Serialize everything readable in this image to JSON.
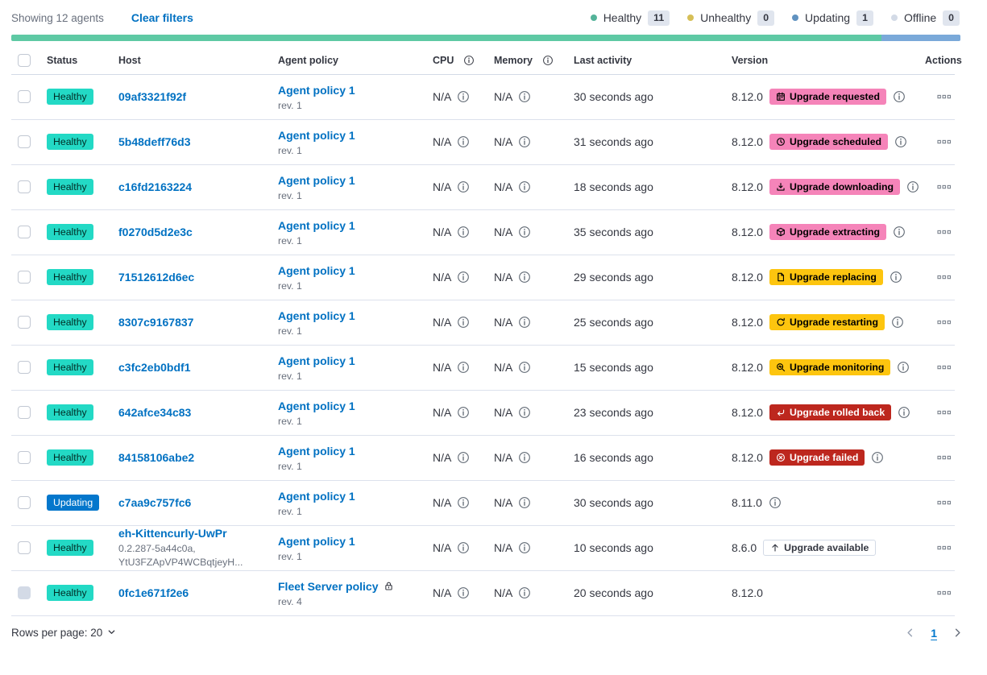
{
  "colors": {
    "link": "#0071c2",
    "text": "#343741",
    "subdued": "#69707d",
    "border": "#d3dae6",
    "healthy-badge": "#23d9c5",
    "updating-badge": "#0477cc",
    "accent-badge": "#f584b9",
    "warning-badge": "#fdc50f",
    "danger-badge": "#bd271e",
    "count-badge-bg": "#e0e5ee"
  },
  "toolbar": {
    "showing_text": "Showing 12 agents",
    "clear_filters_label": "Clear filters",
    "legend": [
      {
        "label": "Healthy",
        "count": "11",
        "color": "#54b399"
      },
      {
        "label": "Unhealthy",
        "count": "0",
        "color": "#d6bf57"
      },
      {
        "label": "Updating",
        "count": "1",
        "color": "#6092c0"
      },
      {
        "label": "Offline",
        "count": "0",
        "color": "#d3dae6"
      }
    ]
  },
  "health_bar": {
    "segments": [
      {
        "label": "Healthy",
        "percent": 91.7,
        "color": "#5ec9a4"
      },
      {
        "label": "Updating",
        "percent": 8.3,
        "color": "#7aa9d9"
      }
    ]
  },
  "table": {
    "headers": {
      "status": "Status",
      "host": "Host",
      "policy": "Agent policy",
      "cpu": "CPU",
      "memory": "Memory",
      "last_activity": "Last activity",
      "version": "Version",
      "actions": "Actions"
    },
    "rows": [
      {
        "checkbox_disabled": false,
        "status": {
          "label": "Healthy",
          "kind": "healthy"
        },
        "host": {
          "name": "09af3321f92f",
          "meta": []
        },
        "policy": {
          "name": "Agent policy 1",
          "revision": "rev. 1",
          "locked": false
        },
        "cpu": "N/A",
        "memory": "N/A",
        "last_activity": "30 seconds ago",
        "version": "8.12.0",
        "upgrade_badge": {
          "label": "Upgrade requested",
          "kind": "accent",
          "icon": "calendar-icon"
        },
        "version_info": true
      },
      {
        "checkbox_disabled": false,
        "status": {
          "label": "Healthy",
          "kind": "healthy"
        },
        "host": {
          "name": "5b48deff76d3",
          "meta": []
        },
        "policy": {
          "name": "Agent policy 1",
          "revision": "rev. 1",
          "locked": false
        },
        "cpu": "N/A",
        "memory": "N/A",
        "last_activity": "31 seconds ago",
        "version": "8.12.0",
        "upgrade_badge": {
          "label": "Upgrade scheduled",
          "kind": "accent",
          "icon": "clock-icon"
        },
        "version_info": true
      },
      {
        "checkbox_disabled": false,
        "status": {
          "label": "Healthy",
          "kind": "healthy"
        },
        "host": {
          "name": "c16fd2163224",
          "meta": []
        },
        "policy": {
          "name": "Agent policy 1",
          "revision": "rev. 1",
          "locked": false
        },
        "cpu": "N/A",
        "memory": "N/A",
        "last_activity": "18 seconds ago",
        "version": "8.12.0",
        "upgrade_badge": {
          "label": "Upgrade downloading",
          "kind": "accent",
          "icon": "download-icon"
        },
        "version_info": true
      },
      {
        "checkbox_disabled": false,
        "status": {
          "label": "Healthy",
          "kind": "healthy"
        },
        "host": {
          "name": "f0270d5d2e3c",
          "meta": []
        },
        "policy": {
          "name": "Agent policy 1",
          "revision": "rev. 1",
          "locked": false
        },
        "cpu": "N/A",
        "memory": "N/A",
        "last_activity": "35 seconds ago",
        "version": "8.12.0",
        "upgrade_badge": {
          "label": "Upgrade extracting",
          "kind": "accent",
          "icon": "package-icon"
        },
        "version_info": true
      },
      {
        "checkbox_disabled": false,
        "status": {
          "label": "Healthy",
          "kind": "healthy"
        },
        "host": {
          "name": "71512612d6ec",
          "meta": []
        },
        "policy": {
          "name": "Agent policy 1",
          "revision": "rev. 1",
          "locked": false
        },
        "cpu": "N/A",
        "memory": "N/A",
        "last_activity": "29 seconds ago",
        "version": "8.12.0",
        "upgrade_badge": {
          "label": "Upgrade replacing",
          "kind": "warning",
          "icon": "document-icon"
        },
        "version_info": true
      },
      {
        "checkbox_disabled": false,
        "status": {
          "label": "Healthy",
          "kind": "healthy"
        },
        "host": {
          "name": "8307c9167837",
          "meta": []
        },
        "policy": {
          "name": "Agent policy 1",
          "revision": "rev. 1",
          "locked": false
        },
        "cpu": "N/A",
        "memory": "N/A",
        "last_activity": "25 seconds ago",
        "version": "8.12.0",
        "upgrade_badge": {
          "label": "Upgrade restarting",
          "kind": "warning",
          "icon": "refresh-icon"
        },
        "version_info": true
      },
      {
        "checkbox_disabled": false,
        "status": {
          "label": "Healthy",
          "kind": "healthy"
        },
        "host": {
          "name": "c3fc2eb0bdf1",
          "meta": []
        },
        "policy": {
          "name": "Agent policy 1",
          "revision": "rev. 1",
          "locked": false
        },
        "cpu": "N/A",
        "memory": "N/A",
        "last_activity": "15 seconds ago",
        "version": "8.12.0",
        "upgrade_badge": {
          "label": "Upgrade monitoring",
          "kind": "warning",
          "icon": "inspect-icon"
        },
        "version_info": true
      },
      {
        "checkbox_disabled": false,
        "status": {
          "label": "Healthy",
          "kind": "healthy"
        },
        "host": {
          "name": "642afce34c83",
          "meta": []
        },
        "policy": {
          "name": "Agent policy 1",
          "revision": "rev. 1",
          "locked": false
        },
        "cpu": "N/A",
        "memory": "N/A",
        "last_activity": "23 seconds ago",
        "version": "8.12.0",
        "upgrade_badge": {
          "label": "Upgrade rolled back",
          "kind": "danger",
          "icon": "return-icon"
        },
        "version_info": true
      },
      {
        "checkbox_disabled": false,
        "status": {
          "label": "Healthy",
          "kind": "healthy"
        },
        "host": {
          "name": "84158106abe2",
          "meta": []
        },
        "policy": {
          "name": "Agent policy 1",
          "revision": "rev. 1",
          "locked": false
        },
        "cpu": "N/A",
        "memory": "N/A",
        "last_activity": "16 seconds ago",
        "version": "8.12.0",
        "upgrade_badge": {
          "label": "Upgrade failed",
          "kind": "danger",
          "icon": "error-icon"
        },
        "version_info": true
      },
      {
        "checkbox_disabled": false,
        "status": {
          "label": "Updating",
          "kind": "updating"
        },
        "host": {
          "name": "c7aa9c757fc6",
          "meta": []
        },
        "policy": {
          "name": "Agent policy 1",
          "revision": "rev. 1",
          "locked": false
        },
        "cpu": "N/A",
        "memory": "N/A",
        "last_activity": "30 seconds ago",
        "version": "8.11.0",
        "upgrade_badge": null,
        "version_info": true
      },
      {
        "checkbox_disabled": false,
        "status": {
          "label": "Healthy",
          "kind": "healthy"
        },
        "host": {
          "name": "eh-Kittencurly-UwPr",
          "meta": [
            "0.2.287-5a44c0a,",
            "YtU3FZApVP4WCBqtjeyH..."
          ]
        },
        "policy": {
          "name": "Agent policy 1",
          "revision": "rev. 1",
          "locked": false
        },
        "cpu": "N/A",
        "memory": "N/A",
        "last_activity": "10 seconds ago",
        "version": "8.6.0",
        "upgrade_badge": {
          "label": "Upgrade available",
          "kind": "hollow",
          "icon": "arrow-up-icon"
        },
        "version_info": false
      },
      {
        "checkbox_disabled": true,
        "status": {
          "label": "Healthy",
          "kind": "healthy"
        },
        "host": {
          "name": "0fc1e671f2e6",
          "meta": []
        },
        "policy": {
          "name": "Fleet Server policy",
          "revision": "rev. 4",
          "locked": true
        },
        "cpu": "N/A",
        "memory": "N/A",
        "last_activity": "20 seconds ago",
        "version": "8.12.0",
        "upgrade_badge": null,
        "version_info": false
      }
    ]
  },
  "footer": {
    "rows_per_page_label": "Rows per page: 20",
    "page": "1"
  }
}
